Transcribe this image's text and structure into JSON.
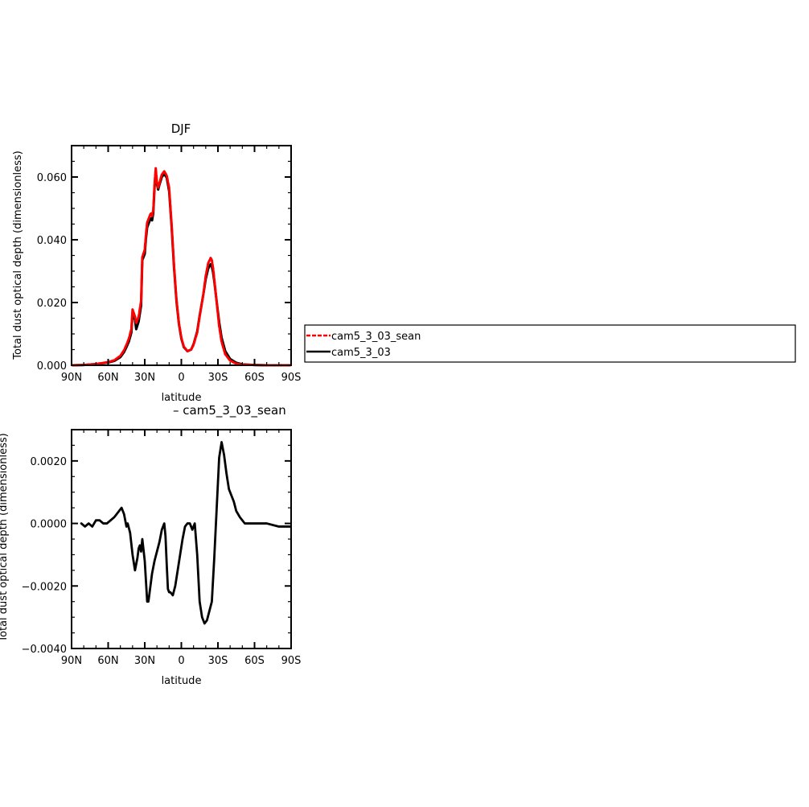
{
  "chart_data": [
    {
      "type": "line",
      "title": "DJF",
      "xlabel": "latitude",
      "ylabel": "Total dust optical depth (dimensionless)",
      "xlim": [
        90,
        -90
      ],
      "ylim": [
        0,
        0.07
      ],
      "x_ticks": [
        90,
        60,
        30,
        0,
        -30,
        -60,
        -90
      ],
      "x_tick_labels": [
        "90N",
        "60N",
        "30N",
        "0",
        "30S",
        "60S",
        "90S"
      ],
      "y_ticks": [
        0,
        0.02,
        0.04,
        0.06
      ],
      "y_tick_labels": [
        "0.000",
        "0.020",
        "0.040",
        "0.060"
      ],
      "legend": {
        "placement": "right",
        "entries": [
          "cam5_3_03_sean",
          "cam5_3_03"
        ]
      },
      "series": [
        {
          "name": "cam5_3_03_sean",
          "color": "#ff0000",
          "dash": "dashed",
          "x": [
            89,
            80,
            70,
            60,
            55,
            50,
            47,
            45,
            43,
            41,
            40,
            38,
            37,
            35,
            33,
            32,
            30,
            29,
            28,
            26,
            25,
            24,
            23,
            22,
            21,
            20,
            19,
            18,
            16,
            14,
            12,
            10,
            8,
            6,
            4,
            2,
            0,
            -2,
            -5,
            -8,
            -10,
            -13,
            -15,
            -18,
            -20,
            -22,
            -24,
            -25,
            -26,
            -27,
            -29,
            -31,
            -33,
            -36,
            -40,
            -45,
            -50,
            -60,
            -70,
            -80,
            -89
          ],
          "y": [
            0.0,
            0.0001,
            0.0004,
            0.001,
            0.0016,
            0.003,
            0.0048,
            0.0065,
            0.0085,
            0.0115,
            0.0178,
            0.0155,
            0.0135,
            0.0155,
            0.0205,
            0.0345,
            0.0368,
            0.0418,
            0.0455,
            0.0475,
            0.0485,
            0.0475,
            0.0495,
            0.0575,
            0.0628,
            0.0585,
            0.0565,
            0.058,
            0.0608,
            0.0618,
            0.0605,
            0.0565,
            0.045,
            0.0318,
            0.021,
            0.0135,
            0.0088,
            0.006,
            0.0045,
            0.005,
            0.0065,
            0.0105,
            0.0155,
            0.0225,
            0.0285,
            0.0325,
            0.0342,
            0.0335,
            0.031,
            0.0275,
            0.02,
            0.0125,
            0.0075,
            0.0035,
            0.0015,
            0.0005,
            0.0002,
            0.0001,
            0.0,
            0.0,
            0.0
          ]
        },
        {
          "name": "cam5_3_03",
          "color": "#000000",
          "dash": "solid",
          "x": [
            89,
            80,
            70,
            60,
            55,
            50,
            47,
            45,
            43,
            41,
            40,
            38,
            37,
            35,
            33,
            32,
            30,
            29,
            28,
            26,
            25,
            24,
            23,
            22,
            21,
            20,
            19,
            18,
            16,
            14,
            12,
            10,
            8,
            6,
            4,
            2,
            0,
            -2,
            -5,
            -8,
            -10,
            -13,
            -15,
            -18,
            -20,
            -22,
            -24,
            -25,
            -26,
            -27,
            -29,
            -31,
            -33,
            -36,
            -40,
            -45,
            -50,
            -60,
            -70,
            -80,
            -89
          ],
          "y": [
            0.0,
            0.0001,
            0.0004,
            0.0009,
            0.0014,
            0.0026,
            0.0042,
            0.0058,
            0.0076,
            0.0104,
            0.0165,
            0.0145,
            0.0115,
            0.014,
            0.019,
            0.0335,
            0.0355,
            0.0405,
            0.044,
            0.046,
            0.0468,
            0.0462,
            0.0485,
            0.0565,
            0.0615,
            0.0578,
            0.056,
            0.0575,
            0.06,
            0.061,
            0.0598,
            0.0555,
            0.0443,
            0.0312,
            0.0205,
            0.0132,
            0.0085,
            0.0058,
            0.0045,
            0.005,
            0.0067,
            0.0108,
            0.0158,
            0.0225,
            0.0275,
            0.0308,
            0.0322,
            0.0315,
            0.0296,
            0.0268,
            0.0202,
            0.0138,
            0.0088,
            0.0045,
            0.002,
            0.0008,
            0.0003,
            0.0001,
            0.0,
            0.0,
            0.0
          ]
        }
      ]
    },
    {
      "type": "line",
      "title": " – cam5_3_03_sean",
      "xlabel": "latitude",
      "ylabel": "Total dust optical depth (dimensionless)",
      "xlim": [
        90,
        -90
      ],
      "ylim": [
        -0.004,
        0.003
      ],
      "x_ticks": [
        90,
        60,
        30,
        0,
        -30,
        -60,
        -90
      ],
      "x_tick_labels": [
        "90N",
        "60N",
        "30N",
        "0",
        "30S",
        "60S",
        "90S"
      ],
      "y_ticks": [
        -0.004,
        -0.002,
        0,
        0.002
      ],
      "y_tick_labels": [
        "−0.0040",
        "−0.0020",
        "0.0000",
        "0.0020"
      ],
      "series": [
        {
          "color": "#000000",
          "dash": "solid",
          "x": [
            82,
            79,
            76,
            73,
            70,
            67,
            64,
            61,
            58,
            55,
            51,
            49,
            47,
            45,
            44,
            42,
            40,
            38,
            36,
            35,
            34,
            33,
            32,
            30,
            28,
            27,
            26,
            25,
            24,
            22,
            20,
            18,
            16,
            14,
            13,
            12,
            11,
            10,
            9,
            7,
            5,
            3,
            1,
            -1,
            -3,
            -5,
            -7,
            -9,
            -11,
            -13,
            -15,
            -17,
            -19,
            -21,
            -23,
            -25,
            -27,
            -29,
            -31,
            -33,
            -35,
            -37,
            -39,
            -41,
            -43,
            -45,
            -48,
            -52,
            -57,
            -62,
            -70,
            -80,
            -89
          ],
          "y": [
            0.0,
            -0.0001,
            0.0,
            -0.0001,
            0.0001,
            0.0001,
            0.0,
            0.0,
            0.0001,
            0.0002,
            0.0004,
            0.0005,
            0.0003,
            -0.0001,
            0.0,
            -0.0003,
            -0.001,
            -0.0015,
            -0.0011,
            -0.0008,
            -0.0007,
            -0.0009,
            -0.0005,
            -0.0012,
            -0.0025,
            -0.0025,
            -0.0022,
            -0.0019,
            -0.0016,
            -0.0012,
            -0.0009,
            -0.0006,
            -0.0002,
            0.0,
            -0.0004,
            -0.0013,
            -0.0021,
            -0.0022,
            -0.0022,
            -0.0023,
            -0.002,
            -0.0015,
            -0.001,
            -0.0005,
            -0.0001,
            0.0,
            0.0,
            -0.0002,
            0.0,
            -0.001,
            -0.0025,
            -0.003,
            -0.0032,
            -0.0031,
            -0.0028,
            -0.0025,
            -0.0011,
            0.0005,
            0.0021,
            0.0026,
            0.0022,
            0.0016,
            0.0011,
            0.0009,
            0.0007,
            0.0004,
            0.0002,
            0.0,
            0.0,
            0.0,
            0.0,
            -0.0001,
            -0.0001
          ]
        }
      ]
    }
  ]
}
